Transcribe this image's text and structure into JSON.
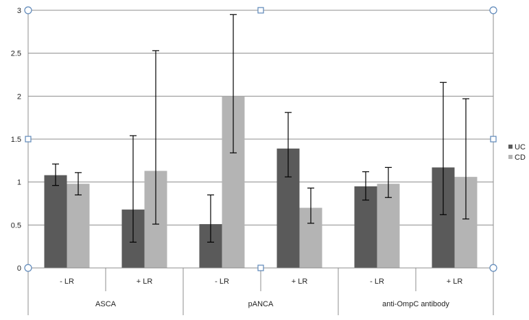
{
  "chart_data": {
    "type": "bar",
    "title": "",
    "xlabel": "",
    "ylabel": "",
    "ylim": [
      0,
      3
    ],
    "yticks": [
      "0",
      "0.5",
      "1",
      "1.5",
      "2",
      "2.5",
      "3"
    ],
    "grid": true,
    "legend_position": "right",
    "groups": [
      {
        "label": "ASCA",
        "subcategories": [
          "- LR",
          "+ LR"
        ]
      },
      {
        "label": "pANCA",
        "subcategories": [
          "- LR",
          "+ LR"
        ]
      },
      {
        "label": "anti-OmpC antibody",
        "subcategories": [
          "- LR",
          "+ LR"
        ]
      }
    ],
    "series": [
      {
        "name": "UC",
        "color": "#5a5a5a",
        "values": [
          1.08,
          0.68,
          0.51,
          1.39,
          0.95,
          1.17
        ],
        "error_low": [
          0.96,
          0.3,
          0.3,
          1.06,
          0.79,
          0.62
        ],
        "error_high": [
          1.21,
          1.54,
          0.85,
          1.81,
          1.12,
          2.16
        ]
      },
      {
        "name": "CD",
        "color": "#b4b4b4",
        "values": [
          0.98,
          1.13,
          2.0,
          0.7,
          0.98,
          1.06
        ],
        "error_low": [
          0.85,
          0.51,
          1.34,
          0.52,
          0.82,
          0.57
        ],
        "error_high": [
          1.11,
          2.53,
          2.95,
          0.93,
          1.17,
          1.97
        ]
      }
    ]
  }
}
